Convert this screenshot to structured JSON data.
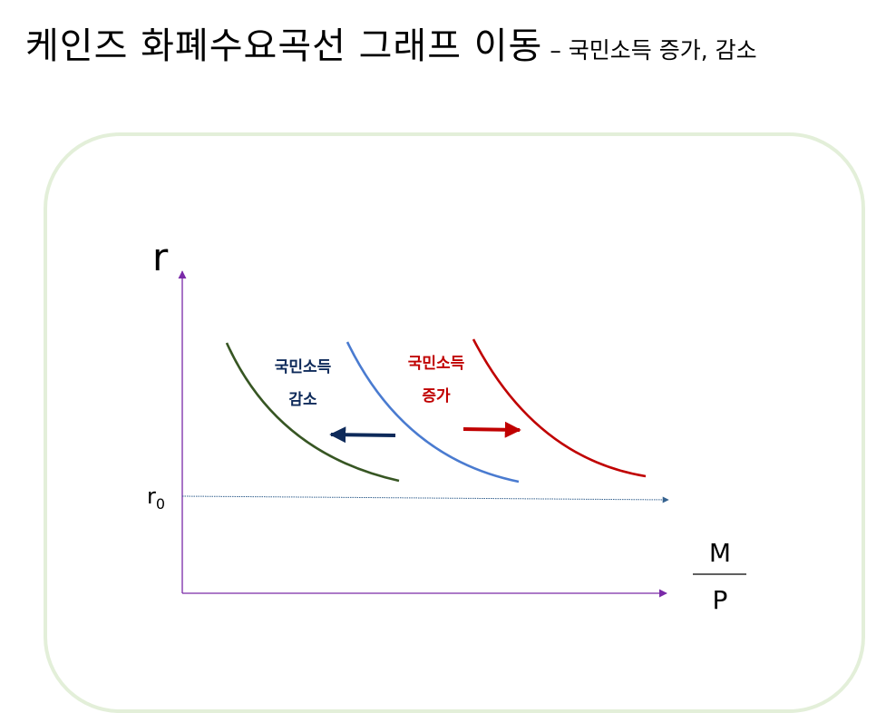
{
  "title": {
    "main": "케인즈 화폐수요곡선 그래프 이동",
    "sub": "– 국민소득 증가, 감소"
  },
  "diagram": {
    "y_axis_label": "r",
    "r0_label": "r",
    "r0_subscript": "0",
    "x_axis_numerator": "M",
    "x_axis_denominator": "P",
    "decrease_label_line1": "국민소득",
    "decrease_label_line2": "감소",
    "increase_label_line1": "국민소득",
    "increase_label_line2": "증가",
    "colors": {
      "axis": "#7a2aa8",
      "r0_line": "#35628f",
      "curve_left": "#375623",
      "curve_middle": "#4a7bd0",
      "curve_right": "#c00000",
      "decrease": "#0e2a5a",
      "increase": "#c00000",
      "frame": "#e3efd9"
    }
  }
}
